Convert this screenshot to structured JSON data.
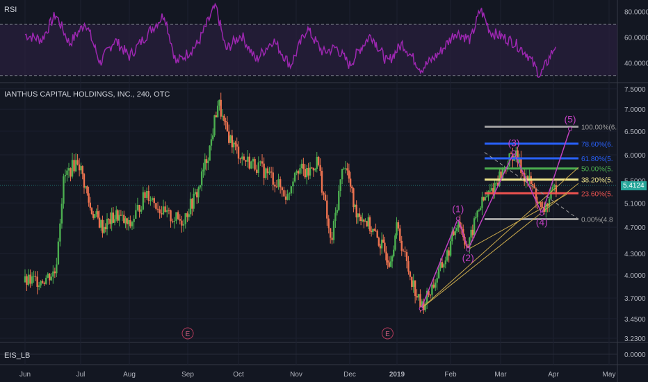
{
  "rsi_pane": {
    "title": "RSI",
    "y_ticks": [
      "80.0000",
      "60.0000",
      "40.0000"
    ],
    "y_tick_values": [
      80,
      60,
      40
    ],
    "band_upper": 70,
    "band_lower": 30,
    "ylim": [
      25,
      88
    ],
    "line_color": "#9c27b0",
    "band_fill": "#2a1f3d"
  },
  "price_pane": {
    "title": "IANTHUS CAPITAL HOLDINGS, INC., 240, OTC",
    "y_ticks": [
      "7.5000",
      "7.0000",
      "6.5000",
      "6.0000",
      "5.5000",
      "5.1000",
      "4.7000",
      "4.3000",
      "4.0000",
      "3.7000",
      "3.4500",
      "3.2300"
    ],
    "y_tick_values": [
      7.5,
      7.0,
      6.5,
      6.0,
      5.5,
      5.1,
      4.7,
      4.3,
      4.0,
      3.7,
      3.45,
      3.23
    ],
    "scale": "log",
    "ylim": [
      3.23,
      7.55
    ],
    "last_price": "5.4124",
    "last_price_value": 5.4124,
    "up_color": "#4caf50",
    "down_color": "#ef7350",
    "earnings_markers": [
      {
        "label": "E",
        "month_index": 3.0
      },
      {
        "label": "E",
        "month_index": 6.8
      }
    ]
  },
  "eis_pane": {
    "title": "EIS_LB",
    "y_ticks": [
      "0.0000"
    ]
  },
  "x_axis": {
    "labels": [
      "Jun",
      "Jul",
      "Aug",
      "Sep",
      "Oct",
      "Nov",
      "Dec",
      "2019",
      "Feb",
      "Mar",
      "Apr",
      "May"
    ]
  },
  "fibonacci": {
    "levels": [
      {
        "label": "100.00%(6.",
        "value": 6.6,
        "color": "#9e9e9e"
      },
      {
        "label": "78.60%(6.",
        "value": 6.23,
        "color": "#2962ff"
      },
      {
        "label": "61.80%(5.",
        "value": 5.93,
        "color": "#2962ff"
      },
      {
        "label": "50.00%(5.",
        "value": 5.73,
        "color": "#4caf50"
      },
      {
        "label": "38.20%(5.",
        "value": 5.52,
        "color": "#f0e68c"
      },
      {
        "label": "23.60%(5.",
        "value": 5.27,
        "color": "#ef5350"
      },
      {
        "label": "0.00%(4.8",
        "value": 4.83,
        "color": "#9e9e9e"
      }
    ]
  },
  "elliott_waves": {
    "color": "#c040c0",
    "points": [
      {
        "label": "",
        "x": 7.45,
        "y": 3.57
      },
      {
        "label": "(1)",
        "x": 8.15,
        "y": 4.84
      },
      {
        "label": "(2)",
        "x": 8.35,
        "y": 4.36
      },
      {
        "label": "(3)",
        "x": 9.25,
        "y": 6.05
      },
      {
        "label": "(4)",
        "x": 9.78,
        "y": 4.92
      },
      {
        "label": "(5)",
        "x": 10.3,
        "y": 6.55
      }
    ]
  },
  "chart_data": {
    "type": "candlestick",
    "title": "IANTHUS CAPITAL HOLDINGS, INC., 240, OTC",
    "x_labels": [
      "Jun",
      "Jul",
      "Aug",
      "Sep",
      "Oct",
      "Nov",
      "Dec",
      "2019",
      "Feb",
      "Mar",
      "Apr",
      "May"
    ],
    "price_anchors": {
      "x": [
        0.0,
        0.35,
        0.55,
        0.7,
        0.95,
        1.2,
        1.45,
        1.75,
        2.0,
        2.3,
        2.6,
        2.9,
        3.2,
        3.45,
        3.6,
        3.72,
        3.9,
        4.1,
        4.3,
        4.55,
        4.85,
        5.0,
        5.2,
        5.4,
        5.65,
        5.9,
        6.1,
        6.35,
        6.6,
        6.85,
        7.0,
        7.2,
        7.45,
        7.7,
        7.95,
        8.15,
        8.35,
        8.55,
        8.8,
        9.05,
        9.25,
        9.45,
        9.6,
        9.78,
        9.95,
        10.05
      ],
      "y": [
        3.9,
        3.95,
        4.05,
        5.55,
        5.9,
        5.0,
        4.7,
        4.9,
        4.7,
        5.3,
        4.9,
        4.8,
        5.3,
        6.2,
        7.2,
        6.6,
        6.2,
        5.9,
        5.8,
        5.6,
        5.2,
        5.8,
        5.6,
        5.9,
        4.4,
        5.9,
        5.0,
        4.8,
        4.5,
        4.2,
        4.7,
        4.1,
        3.57,
        3.9,
        4.3,
        4.84,
        4.36,
        5.0,
        5.3,
        5.7,
        6.05,
        5.6,
        5.4,
        4.92,
        5.2,
        5.41
      ]
    },
    "rsi_anchors": {
      "x": [
        0.0,
        0.3,
        0.55,
        0.8,
        1.1,
        1.4,
        1.7,
        2.0,
        2.3,
        2.6,
        2.8,
        3.2,
        3.55,
        3.75,
        4.05,
        4.3,
        4.6,
        4.9,
        5.2,
        5.5,
        5.75,
        6.0,
        6.2,
        6.45,
        6.8,
        7.1,
        7.45,
        7.8,
        8.1,
        8.4,
        8.6,
        8.8,
        9.05,
        9.25,
        9.5,
        9.75,
        9.9,
        10.05
      ],
      "y": [
        62,
        58,
        78,
        55,
        72,
        40,
        58,
        45,
        62,
        78,
        40,
        55,
        85,
        50,
        62,
        42,
        58,
        38,
        67,
        48,
        52,
        38,
        50,
        62,
        40,
        55,
        35,
        48,
        64,
        58,
        82,
        64,
        60,
        56,
        47,
        30,
        42,
        55
      ]
    }
  }
}
